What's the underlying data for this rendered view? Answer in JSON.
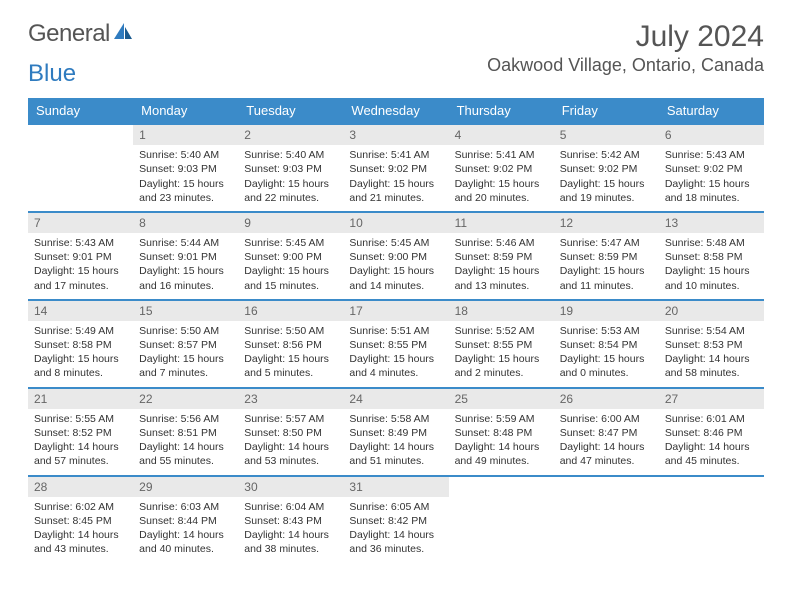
{
  "brand": {
    "part1": "General",
    "part2": "Blue"
  },
  "title": "July 2024",
  "location": "Oakwood Village, Ontario, Canada",
  "colors": {
    "header_bg": "#3b8bc9",
    "header_text": "#ffffff",
    "daynum_bg": "#e9e9e9",
    "row_border": "#3b8bc9",
    "text": "#333333",
    "brand_blue": "#2f7bbf",
    "brand_gray": "#555555"
  },
  "weekdays": [
    "Sunday",
    "Monday",
    "Tuesday",
    "Wednesday",
    "Thursday",
    "Friday",
    "Saturday"
  ],
  "weeks": [
    [
      {
        "n": "",
        "sr": "",
        "ss": "",
        "d1": "",
        "d2": ""
      },
      {
        "n": "1",
        "sr": "Sunrise: 5:40 AM",
        "ss": "Sunset: 9:03 PM",
        "d1": "Daylight: 15 hours",
        "d2": "and 23 minutes."
      },
      {
        "n": "2",
        "sr": "Sunrise: 5:40 AM",
        "ss": "Sunset: 9:03 PM",
        "d1": "Daylight: 15 hours",
        "d2": "and 22 minutes."
      },
      {
        "n": "3",
        "sr": "Sunrise: 5:41 AM",
        "ss": "Sunset: 9:02 PM",
        "d1": "Daylight: 15 hours",
        "d2": "and 21 minutes."
      },
      {
        "n": "4",
        "sr": "Sunrise: 5:41 AM",
        "ss": "Sunset: 9:02 PM",
        "d1": "Daylight: 15 hours",
        "d2": "and 20 minutes."
      },
      {
        "n": "5",
        "sr": "Sunrise: 5:42 AM",
        "ss": "Sunset: 9:02 PM",
        "d1": "Daylight: 15 hours",
        "d2": "and 19 minutes."
      },
      {
        "n": "6",
        "sr": "Sunrise: 5:43 AM",
        "ss": "Sunset: 9:02 PM",
        "d1": "Daylight: 15 hours",
        "d2": "and 18 minutes."
      }
    ],
    [
      {
        "n": "7",
        "sr": "Sunrise: 5:43 AM",
        "ss": "Sunset: 9:01 PM",
        "d1": "Daylight: 15 hours",
        "d2": "and 17 minutes."
      },
      {
        "n": "8",
        "sr": "Sunrise: 5:44 AM",
        "ss": "Sunset: 9:01 PM",
        "d1": "Daylight: 15 hours",
        "d2": "and 16 minutes."
      },
      {
        "n": "9",
        "sr": "Sunrise: 5:45 AM",
        "ss": "Sunset: 9:00 PM",
        "d1": "Daylight: 15 hours",
        "d2": "and 15 minutes."
      },
      {
        "n": "10",
        "sr": "Sunrise: 5:45 AM",
        "ss": "Sunset: 9:00 PM",
        "d1": "Daylight: 15 hours",
        "d2": "and 14 minutes."
      },
      {
        "n": "11",
        "sr": "Sunrise: 5:46 AM",
        "ss": "Sunset: 8:59 PM",
        "d1": "Daylight: 15 hours",
        "d2": "and 13 minutes."
      },
      {
        "n": "12",
        "sr": "Sunrise: 5:47 AM",
        "ss": "Sunset: 8:59 PM",
        "d1": "Daylight: 15 hours",
        "d2": "and 11 minutes."
      },
      {
        "n": "13",
        "sr": "Sunrise: 5:48 AM",
        "ss": "Sunset: 8:58 PM",
        "d1": "Daylight: 15 hours",
        "d2": "and 10 minutes."
      }
    ],
    [
      {
        "n": "14",
        "sr": "Sunrise: 5:49 AM",
        "ss": "Sunset: 8:58 PM",
        "d1": "Daylight: 15 hours",
        "d2": "and 8 minutes."
      },
      {
        "n": "15",
        "sr": "Sunrise: 5:50 AM",
        "ss": "Sunset: 8:57 PM",
        "d1": "Daylight: 15 hours",
        "d2": "and 7 minutes."
      },
      {
        "n": "16",
        "sr": "Sunrise: 5:50 AM",
        "ss": "Sunset: 8:56 PM",
        "d1": "Daylight: 15 hours",
        "d2": "and 5 minutes."
      },
      {
        "n": "17",
        "sr": "Sunrise: 5:51 AM",
        "ss": "Sunset: 8:55 PM",
        "d1": "Daylight: 15 hours",
        "d2": "and 4 minutes."
      },
      {
        "n": "18",
        "sr": "Sunrise: 5:52 AM",
        "ss": "Sunset: 8:55 PM",
        "d1": "Daylight: 15 hours",
        "d2": "and 2 minutes."
      },
      {
        "n": "19",
        "sr": "Sunrise: 5:53 AM",
        "ss": "Sunset: 8:54 PM",
        "d1": "Daylight: 15 hours",
        "d2": "and 0 minutes."
      },
      {
        "n": "20",
        "sr": "Sunrise: 5:54 AM",
        "ss": "Sunset: 8:53 PM",
        "d1": "Daylight: 14 hours",
        "d2": "and 58 minutes."
      }
    ],
    [
      {
        "n": "21",
        "sr": "Sunrise: 5:55 AM",
        "ss": "Sunset: 8:52 PM",
        "d1": "Daylight: 14 hours",
        "d2": "and 57 minutes."
      },
      {
        "n": "22",
        "sr": "Sunrise: 5:56 AM",
        "ss": "Sunset: 8:51 PM",
        "d1": "Daylight: 14 hours",
        "d2": "and 55 minutes."
      },
      {
        "n": "23",
        "sr": "Sunrise: 5:57 AM",
        "ss": "Sunset: 8:50 PM",
        "d1": "Daylight: 14 hours",
        "d2": "and 53 minutes."
      },
      {
        "n": "24",
        "sr": "Sunrise: 5:58 AM",
        "ss": "Sunset: 8:49 PM",
        "d1": "Daylight: 14 hours",
        "d2": "and 51 minutes."
      },
      {
        "n": "25",
        "sr": "Sunrise: 5:59 AM",
        "ss": "Sunset: 8:48 PM",
        "d1": "Daylight: 14 hours",
        "d2": "and 49 minutes."
      },
      {
        "n": "26",
        "sr": "Sunrise: 6:00 AM",
        "ss": "Sunset: 8:47 PM",
        "d1": "Daylight: 14 hours",
        "d2": "and 47 minutes."
      },
      {
        "n": "27",
        "sr": "Sunrise: 6:01 AM",
        "ss": "Sunset: 8:46 PM",
        "d1": "Daylight: 14 hours",
        "d2": "and 45 minutes."
      }
    ],
    [
      {
        "n": "28",
        "sr": "Sunrise: 6:02 AM",
        "ss": "Sunset: 8:45 PM",
        "d1": "Daylight: 14 hours",
        "d2": "and 43 minutes."
      },
      {
        "n": "29",
        "sr": "Sunrise: 6:03 AM",
        "ss": "Sunset: 8:44 PM",
        "d1": "Daylight: 14 hours",
        "d2": "and 40 minutes."
      },
      {
        "n": "30",
        "sr": "Sunrise: 6:04 AM",
        "ss": "Sunset: 8:43 PM",
        "d1": "Daylight: 14 hours",
        "d2": "and 38 minutes."
      },
      {
        "n": "31",
        "sr": "Sunrise: 6:05 AM",
        "ss": "Sunset: 8:42 PM",
        "d1": "Daylight: 14 hours",
        "d2": "and 36 minutes."
      },
      {
        "n": "",
        "sr": "",
        "ss": "",
        "d1": "",
        "d2": ""
      },
      {
        "n": "",
        "sr": "",
        "ss": "",
        "d1": "",
        "d2": ""
      },
      {
        "n": "",
        "sr": "",
        "ss": "",
        "d1": "",
        "d2": ""
      }
    ]
  ]
}
